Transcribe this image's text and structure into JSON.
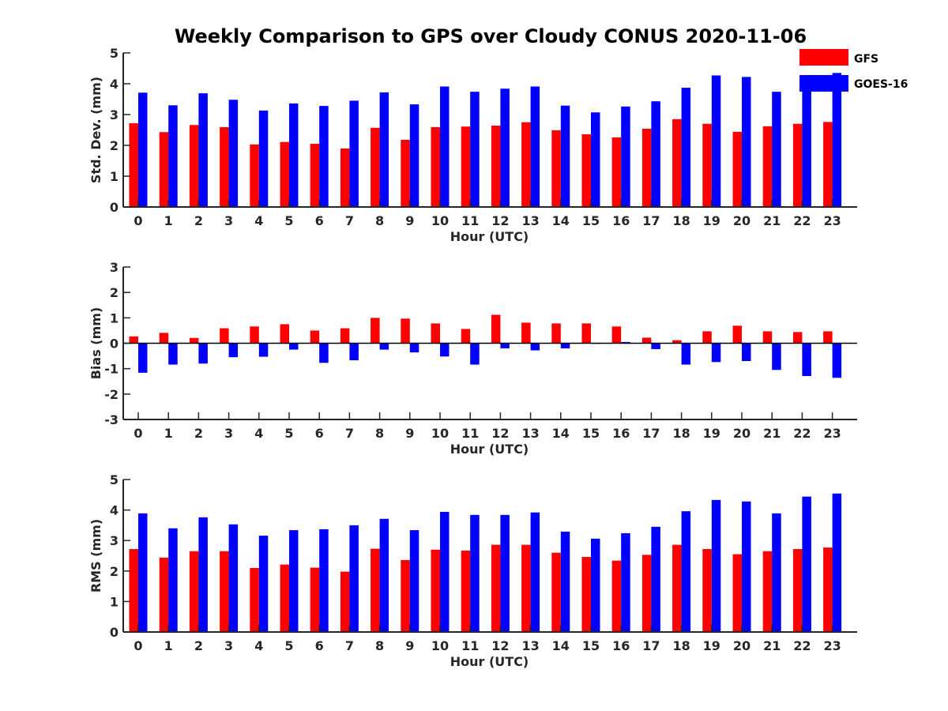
{
  "title": "Weekly Comparison to GPS over Cloudy CONUS 2020-11-06",
  "colors": {
    "GFS": "#ff0000",
    "GOES-16": "#0000ff",
    "axis": "#262626"
  },
  "legend": {
    "placement": "top-right",
    "entries": [
      "GFS",
      "GOES-16"
    ]
  },
  "chart_data": [
    {
      "type": "bar",
      "xlabel": "Hour (UTC)",
      "ylabel": "Std. Dev. (mm)",
      "ylim": [
        0,
        5
      ],
      "yticks": [
        0,
        1,
        2,
        3,
        4,
        5
      ],
      "categories": [
        "0",
        "1",
        "2",
        "3",
        "4",
        "5",
        "6",
        "7",
        "8",
        "9",
        "10",
        "11",
        "12",
        "13",
        "14",
        "15",
        "16",
        "17",
        "18",
        "19",
        "20",
        "21",
        "22",
        "23"
      ],
      "series": [
        {
          "name": "GFS",
          "values": [
            2.72,
            2.43,
            2.66,
            2.59,
            2.03,
            2.11,
            2.05,
            1.9,
            2.57,
            2.18,
            2.59,
            2.61,
            2.64,
            2.75,
            2.49,
            2.36,
            2.26,
            2.54,
            2.85,
            2.7,
            2.44,
            2.62,
            2.7,
            2.76
          ]
        },
        {
          "name": "GOES-16",
          "values": [
            3.71,
            3.3,
            3.69,
            3.48,
            3.13,
            3.36,
            3.28,
            3.45,
            3.72,
            3.33,
            3.91,
            3.74,
            3.84,
            3.91,
            3.29,
            3.07,
            3.26,
            3.43,
            3.87,
            4.27,
            4.22,
            3.74,
            4.2,
            4.35
          ]
        }
      ]
    },
    {
      "type": "bar",
      "xlabel": "Hour (UTC)",
      "ylabel": "Bias (mm)",
      "ylim": [
        -3,
        3
      ],
      "yticks": [
        -3,
        -2,
        -1,
        0,
        1,
        2,
        3
      ],
      "categories": [
        "0",
        "1",
        "2",
        "3",
        "4",
        "5",
        "6",
        "7",
        "8",
        "9",
        "10",
        "11",
        "12",
        "13",
        "14",
        "15",
        "16",
        "17",
        "18",
        "19",
        "20",
        "21",
        "22",
        "23"
      ],
      "series": [
        {
          "name": "GFS",
          "values": [
            0.27,
            0.41,
            0.21,
            0.59,
            0.66,
            0.75,
            0.5,
            0.59,
            1.0,
            0.97,
            0.78,
            0.56,
            1.12,
            0.81,
            0.78,
            0.78,
            0.66,
            0.22,
            0.12,
            0.47,
            0.69,
            0.47,
            0.44,
            0.47
          ]
        },
        {
          "name": "GOES-16",
          "values": [
            -1.16,
            -0.84,
            -0.8,
            -0.55,
            -0.53,
            -0.25,
            -0.77,
            -0.67,
            -0.25,
            -0.36,
            -0.52,
            -0.84,
            -0.2,
            -0.28,
            -0.2,
            -0.02,
            0.05,
            -0.23,
            -0.84,
            -0.74,
            -0.7,
            -1.05,
            -1.29,
            -1.36
          ]
        }
      ]
    },
    {
      "type": "bar",
      "xlabel": "Hour (UTC)",
      "ylabel": "RMS (mm)",
      "ylim": [
        0,
        5
      ],
      "yticks": [
        0,
        1,
        2,
        3,
        4,
        5
      ],
      "categories": [
        "0",
        "1",
        "2",
        "3",
        "4",
        "5",
        "6",
        "7",
        "8",
        "9",
        "10",
        "11",
        "12",
        "13",
        "14",
        "15",
        "16",
        "17",
        "18",
        "19",
        "20",
        "21",
        "22",
        "23"
      ],
      "series": [
        {
          "name": "GFS",
          "values": [
            2.72,
            2.44,
            2.65,
            2.65,
            2.1,
            2.21,
            2.11,
            1.98,
            2.73,
            2.36,
            2.7,
            2.67,
            2.86,
            2.86,
            2.6,
            2.46,
            2.34,
            2.53,
            2.86,
            2.72,
            2.55,
            2.65,
            2.72,
            2.77
          ]
        },
        {
          "name": "GOES-16",
          "values": [
            3.89,
            3.4,
            3.76,
            3.53,
            3.16,
            3.34,
            3.37,
            3.5,
            3.71,
            3.34,
            3.94,
            3.84,
            3.84,
            3.92,
            3.29,
            3.06,
            3.24,
            3.45,
            3.96,
            4.33,
            4.28,
            3.89,
            4.44,
            4.54
          ]
        }
      ]
    }
  ]
}
